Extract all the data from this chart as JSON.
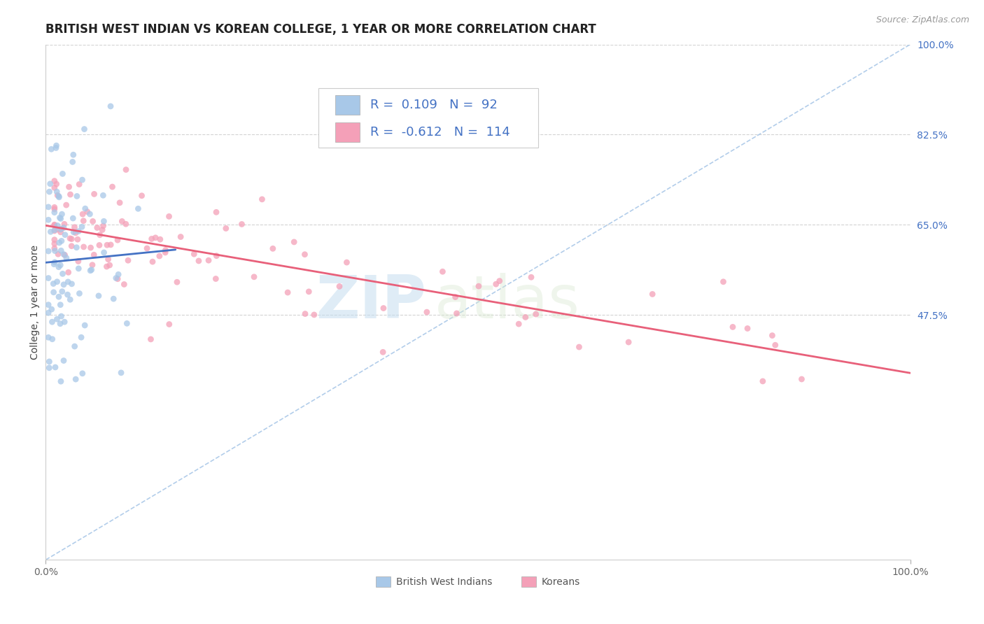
{
  "title": "BRITISH WEST INDIAN VS KOREAN COLLEGE, 1 YEAR OR MORE CORRELATION CHART",
  "source": "Source: ZipAtlas.com",
  "ylabel": "College, 1 year or more",
  "xlim": [
    0.0,
    1.0
  ],
  "ylim": [
    0.0,
    1.0
  ],
  "xtick_labels": [
    "0.0%",
    "100.0%"
  ],
  "xtick_positions": [
    0.0,
    1.0
  ],
  "ytick_labels_right": [
    "47.5%",
    "65.0%",
    "82.5%",
    "100.0%"
  ],
  "ytick_positions_right": [
    0.475,
    0.65,
    0.825,
    1.0
  ],
  "watermark_zip": "ZIP",
  "watermark_atlas": "atlas",
  "legend_R1": "0.109",
  "legend_N1": "92",
  "legend_R2": "-0.612",
  "legend_N2": "114",
  "color_bwi": "#a8c8e8",
  "color_korean": "#f4a0b8",
  "color_bwi_line": "#4472c4",
  "color_korean_line": "#e8607a",
  "color_diag_line": "#aac8e8",
  "background_color": "#ffffff",
  "grid_color": "#c8c8c8",
  "title_fontsize": 12,
  "axis_label_fontsize": 10,
  "tick_fontsize": 10,
  "legend_fontsize": 13,
  "source_fontsize": 9
}
